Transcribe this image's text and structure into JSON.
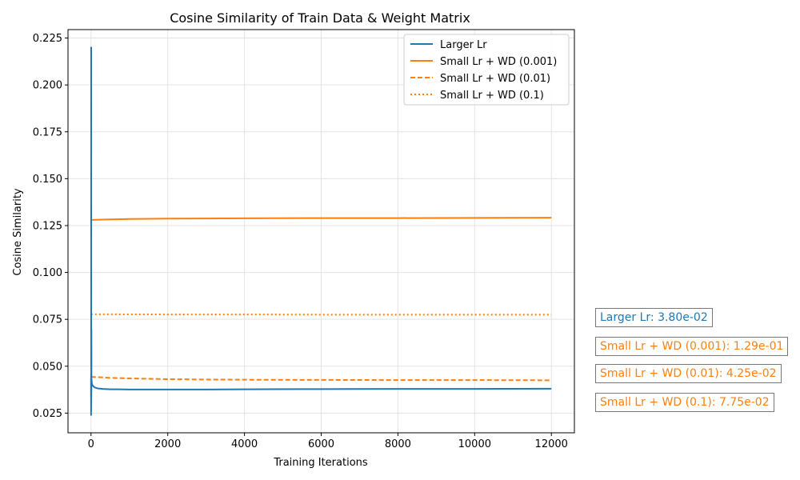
{
  "chart_data": {
    "type": "line",
    "title": "Cosine Similarity of Train Data & Weight Matrix",
    "xlabel": "Training Iterations",
    "ylabel": "Cosine Similarity",
    "xlim": [
      -600,
      12600
    ],
    "ylim": [
      0.0145,
      0.2295
    ],
    "xticks": [
      0,
      2000,
      4000,
      6000,
      8000,
      10000,
      12000
    ],
    "xtick_labels": [
      "0",
      "2000",
      "4000",
      "6000",
      "8000",
      "10000",
      "12000"
    ],
    "yticks": [
      0.025,
      0.05,
      0.075,
      0.1,
      0.125,
      0.15,
      0.175,
      0.2,
      0.225
    ],
    "ytick_labels": [
      "0.025",
      "0.050",
      "0.075",
      "0.100",
      "0.125",
      "0.150",
      "0.175",
      "0.200",
      "0.225"
    ],
    "grid": true,
    "legend_position": "top-right",
    "series": [
      {
        "name": "Larger Lr",
        "color": "#1f77b4",
        "dash": "solid",
        "x": [
          0,
          1,
          2,
          3,
          4,
          5,
          6,
          7,
          8,
          9,
          10,
          11,
          12,
          13,
          14,
          15,
          16,
          18,
          20,
          25,
          30,
          40,
          50,
          75,
          100,
          150,
          200,
          300,
          400,
          500,
          700,
          1000,
          1500,
          2000,
          3000,
          4000,
          6000,
          8000,
          10000,
          12000
        ],
        "y": [
          0.034,
          0.044,
          0.024,
          0.04,
          0.026,
          0.22,
          0.06,
          0.03,
          0.046,
          0.035,
          0.07,
          0.04,
          0.043,
          0.041,
          0.042,
          0.043,
          0.041,
          0.042,
          0.041,
          0.0405,
          0.0402,
          0.0398,
          0.0395,
          0.039,
          0.0387,
          0.0383,
          0.0381,
          0.0379,
          0.0378,
          0.0377,
          0.0377,
          0.0376,
          0.0376,
          0.0376,
          0.0376,
          0.0377,
          0.0378,
          0.0379,
          0.0379,
          0.038
        ]
      },
      {
        "name": "Small Lr + WD (0.001)",
        "color": "#ff7f0e",
        "dash": "solid",
        "x": [
          0,
          500,
          1000,
          2000,
          4000,
          6000,
          8000,
          10000,
          12000
        ],
        "y": [
          0.128,
          0.1283,
          0.1285,
          0.1287,
          0.1289,
          0.129,
          0.129,
          0.1291,
          0.1292
        ]
      },
      {
        "name": "Small Lr + WD (0.01)",
        "color": "#ff7f0e",
        "dash": "dashed",
        "x": [
          0,
          250,
          500,
          1000,
          2000,
          3000,
          4000,
          6000,
          8000,
          10000,
          12000
        ],
        "y": [
          0.0443,
          0.0441,
          0.0438,
          0.0435,
          0.0431,
          0.0429,
          0.0428,
          0.0427,
          0.0426,
          0.0426,
          0.0425
        ]
      },
      {
        "name": "Small Lr + WD (0.1)",
        "color": "#ff7f0e",
        "dash": "dotted",
        "x": [
          0,
          2000,
          4000,
          6000,
          8000,
          10000,
          12000
        ],
        "y": [
          0.0777,
          0.0776,
          0.0776,
          0.0775,
          0.0775,
          0.0775,
          0.0775
        ]
      }
    ],
    "annotations": [
      {
        "text": "Larger Lr: 3.80e-02",
        "color": "#1f77b4"
      },
      {
        "text": "Small Lr + WD (0.001): 1.29e-01",
        "color": "#ff7f0e"
      },
      {
        "text": "Small Lr + WD (0.01): 4.25e-02",
        "color": "#ff7f0e"
      },
      {
        "text": "Small Lr + WD (0.1): 7.75e-02",
        "color": "#ff7f0e"
      }
    ]
  }
}
